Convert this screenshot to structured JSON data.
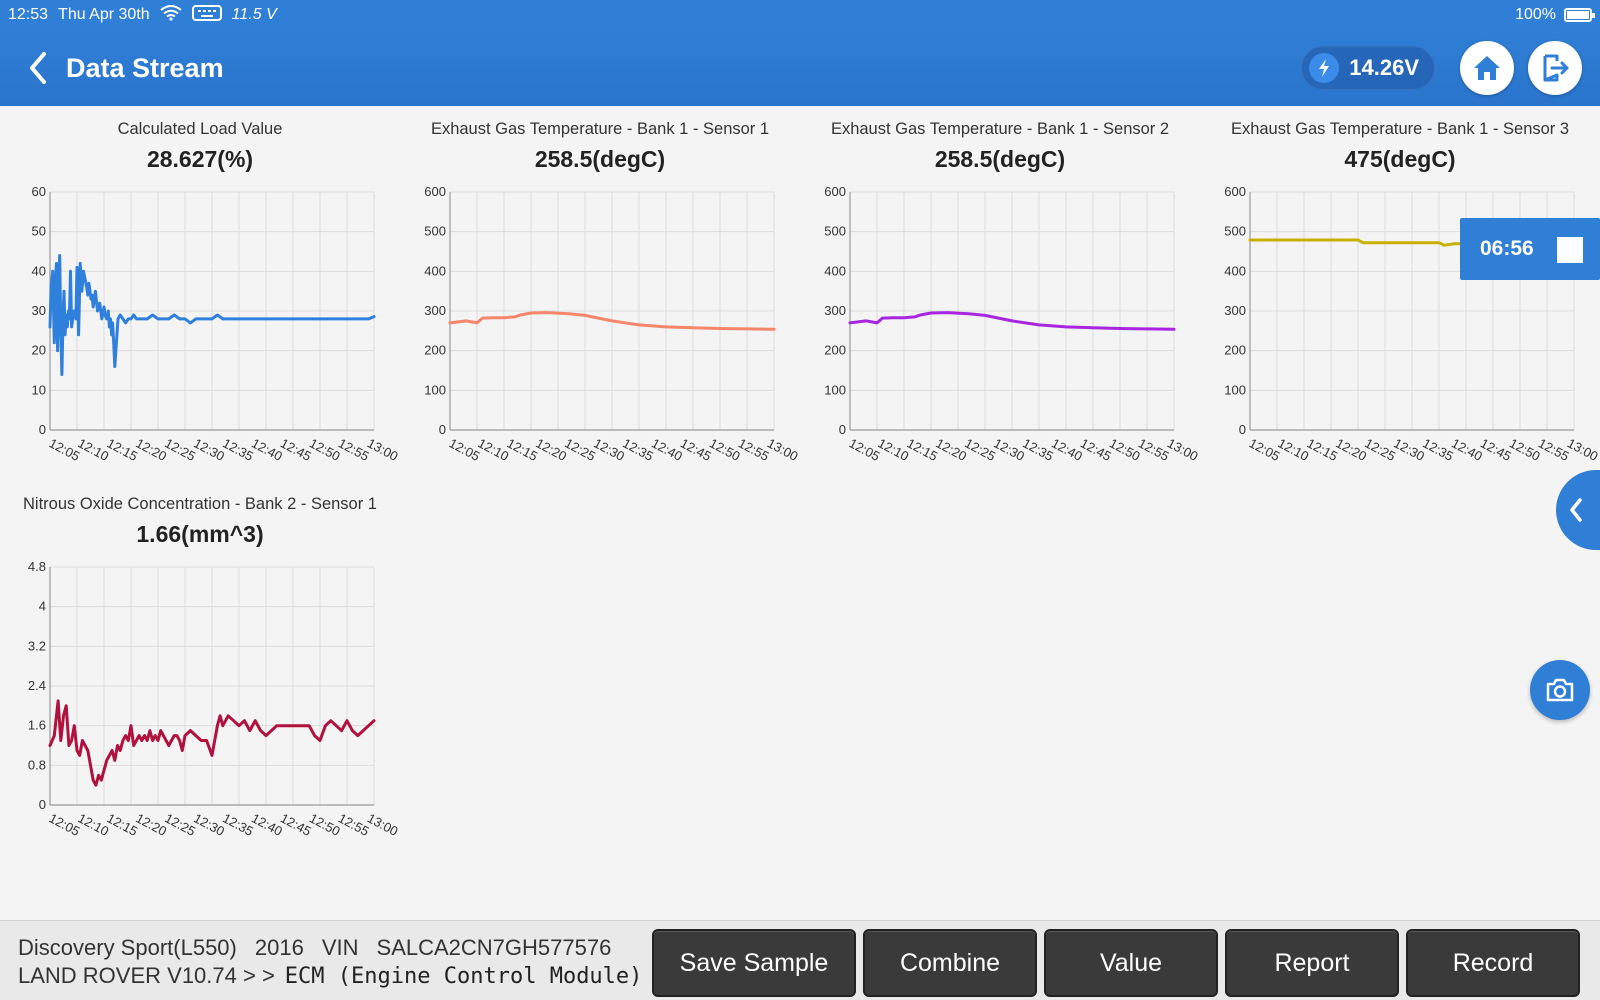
{
  "status": {
    "time": "12:53",
    "date": "Thu Apr 30th",
    "voltage_small": "11.5 V",
    "battery": "100%",
    "battery_level": 1.0
  },
  "header": {
    "title": "Data Stream",
    "voltage": "14.26V"
  },
  "timer": {
    "elapsed": "06:56"
  },
  "chart_data": [
    {
      "type": "line",
      "title": "Calculated Load Value",
      "value_label": "28.627(%)",
      "ylim": [
        0,
        60
      ],
      "yticks": [
        "0",
        "10",
        "20",
        "30",
        "40",
        "50",
        "60"
      ],
      "xticks": [
        "12:05",
        "12:10",
        "12:15",
        "12:20",
        "12:25",
        "12:30",
        "12:35",
        "12:40",
        "12:45",
        "12:50",
        "12:55",
        "13:00"
      ],
      "color": "#2f7fdc",
      "grid": true,
      "x": [
        0,
        0.2,
        0.5,
        0.8,
        1.0,
        1.2,
        1.4,
        1.6,
        1.8,
        2.0,
        2.2,
        2.4,
        2.6,
        2.8,
        3.0,
        3.2,
        3.4,
        3.6,
        3.8,
        4.0,
        4.2,
        4.4,
        4.6,
        4.8,
        5.0,
        5.3,
        5.6,
        5.9,
        6.2,
        6.5,
        6.8,
        7.0,
        7.2,
        7.4,
        7.6,
        7.8,
        8.0,
        8.4,
        8.8,
        9.2,
        9.6,
        10.0,
        10.2,
        10.5,
        10.8,
        11.0,
        11.2,
        11.4,
        11.6,
        11.8,
        12.0,
        12.3,
        12.6,
        13.0,
        13.5,
        14.0,
        14.5,
        15.0,
        15.5,
        16,
        17,
        18,
        19,
        20,
        21,
        22,
        23,
        24,
        25,
        26,
        27,
        28,
        29,
        30,
        31,
        32,
        33,
        34,
        35,
        36,
        37,
        38,
        39,
        40,
        41,
        42,
        43,
        44,
        45,
        46,
        47,
        48,
        49,
        50,
        51,
        52,
        53,
        54,
        55,
        56,
        57,
        58,
        59,
        60
      ],
      "values": [
        26,
        36,
        40,
        22,
        38,
        42,
        20,
        33,
        44,
        25,
        14,
        28,
        35,
        24,
        29,
        26,
        30,
        28,
        40,
        26,
        28,
        30,
        30,
        28,
        41,
        24,
        42,
        35,
        40,
        38,
        36,
        34,
        37,
        35,
        33,
        34,
        31,
        35,
        30,
        32,
        28,
        31,
        29,
        28,
        30,
        26,
        28,
        24,
        27,
        22,
        16,
        22,
        28,
        29,
        28,
        27,
        28,
        28,
        29,
        28,
        28,
        28,
        29,
        28,
        28,
        28,
        29,
        28,
        28,
        27,
        28,
        28,
        28,
        28,
        29,
        28,
        28,
        28,
        28,
        28,
        28,
        28,
        28,
        28,
        28,
        28,
        28,
        28,
        28,
        28,
        28,
        28,
        28,
        28,
        28,
        28,
        28,
        28,
        28,
        28,
        28,
        28,
        28,
        28.6
      ]
    },
    {
      "type": "line",
      "title": "Exhaust Gas Temperature - Bank 1 - Sensor 1",
      "value_label": "258.5(degC)",
      "ylim": [
        0,
        600
      ],
      "yticks": [
        "0",
        "100",
        "200",
        "300",
        "400",
        "500",
        "600"
      ],
      "xticks": [
        "12:05",
        "12:10",
        "12:15",
        "12:20",
        "12:25",
        "12:30",
        "12:35",
        "12:40",
        "12:45",
        "12:50",
        "12:55",
        "13:00"
      ],
      "color": "#f5866b",
      "grid": true,
      "x": [
        0,
        3,
        5,
        6,
        8,
        10,
        12,
        13,
        15,
        18,
        22,
        25,
        30,
        35,
        40,
        45,
        50,
        55,
        60
      ],
      "values": [
        270,
        275,
        270,
        282,
        283,
        283,
        285,
        290,
        295,
        296,
        293,
        289,
        275,
        265,
        260,
        258,
        256,
        255,
        254
      ]
    },
    {
      "type": "line",
      "title": "Exhaust Gas Temperature - Bank 1 - Sensor 2",
      "value_label": "258.5(degC)",
      "ylim": [
        0,
        600
      ],
      "yticks": [
        "0",
        "100",
        "200",
        "300",
        "400",
        "500",
        "600"
      ],
      "xticks": [
        "12:05",
        "12:10",
        "12:15",
        "12:20",
        "12:25",
        "12:30",
        "12:35",
        "12:40",
        "12:45",
        "12:50",
        "12:55",
        "13:00"
      ],
      "color": "#a826e0",
      "grid": true,
      "x": [
        0,
        3,
        5,
        6,
        8,
        10,
        12,
        13,
        15,
        18,
        22,
        25,
        30,
        35,
        40,
        45,
        50,
        55,
        60
      ],
      "values": [
        270,
        275,
        270,
        282,
        283,
        283,
        285,
        290,
        295,
        296,
        293,
        289,
        275,
        265,
        260,
        258,
        256,
        255,
        254
      ]
    },
    {
      "type": "line",
      "title": "Exhaust Gas Temperature - Bank 1 - Sensor 3",
      "value_label": "475(degC)",
      "ylim": [
        0,
        600
      ],
      "yticks": [
        "0",
        "100",
        "200",
        "300",
        "400",
        "500",
        "600"
      ],
      "xticks": [
        "12:05",
        "12:10",
        "12:15",
        "12:20",
        "12:25",
        "12:30",
        "12:35",
        "12:40",
        "12:45",
        "12:50",
        "12:55",
        "13:00"
      ],
      "color": "#c9b000",
      "grid": true,
      "x": [
        0,
        5,
        10,
        15,
        20,
        21,
        22,
        25,
        30,
        35,
        36,
        38,
        40,
        45,
        50,
        55,
        60
      ],
      "values": [
        479,
        479,
        479,
        479,
        479,
        472,
        472,
        472,
        472,
        472,
        466,
        470,
        469,
        470,
        470,
        470,
        470
      ]
    },
    {
      "type": "line",
      "title": "Nitrous Oxide Concentration - Bank 2 - Sensor 1",
      "value_label": "1.66(mm^3)",
      "ylim": [
        0,
        4.8
      ],
      "yticks": [
        "0",
        "0.8",
        "1.6",
        "2.4",
        "3.2",
        "4",
        "4.8"
      ],
      "xticks": [
        "12:05",
        "12:10",
        "12:15",
        "12:20",
        "12:25",
        "12:30",
        "12:35",
        "12:40",
        "12:45",
        "12:50",
        "12:55",
        "13:00"
      ],
      "color": "#b0123e",
      "grid": true,
      "x": [
        0,
        0.8,
        1.5,
        2.0,
        2.5,
        3.0,
        3.5,
        4.0,
        4.5,
        5.0,
        5.5,
        6.0,
        6.5,
        7.0,
        7.5,
        8.0,
        8.5,
        9.0,
        9.5,
        10.0,
        10.5,
        11,
        11.5,
        12,
        12.5,
        13,
        13.5,
        14,
        14.5,
        15,
        15.5,
        16,
        16.5,
        17,
        17.5,
        18,
        18.5,
        19,
        19.5,
        20,
        20.5,
        21,
        21.5,
        22,
        22.5,
        23,
        23.5,
        24,
        24.5,
        25,
        26,
        27,
        28,
        29,
        30,
        30.5,
        31,
        31.5,
        32,
        33,
        34,
        35,
        36,
        37,
        38,
        39,
        40,
        41,
        42,
        43,
        44,
        45,
        46,
        47,
        48,
        49,
        50,
        51,
        52,
        53,
        54,
        55,
        56,
        57,
        58,
        59,
        60
      ],
      "values": [
        1.2,
        1.4,
        2.1,
        1.3,
        1.8,
        2.0,
        1.2,
        1.3,
        1.6,
        1.1,
        1.0,
        1.3,
        1.2,
        1.1,
        0.8,
        0.5,
        0.4,
        0.6,
        0.5,
        0.7,
        0.9,
        1.0,
        1.1,
        0.9,
        1.2,
        1.1,
        1.3,
        1.4,
        1.3,
        1.6,
        1.2,
        1.3,
        1.4,
        1.3,
        1.4,
        1.3,
        1.5,
        1.3,
        1.4,
        1.3,
        1.5,
        1.4,
        1.3,
        1.2,
        1.3,
        1.4,
        1.4,
        1.3,
        1.1,
        1.4,
        1.5,
        1.4,
        1.3,
        1.3,
        1.0,
        1.3,
        1.6,
        1.8,
        1.6,
        1.8,
        1.7,
        1.6,
        1.7,
        1.5,
        1.7,
        1.5,
        1.4,
        1.5,
        1.6,
        1.6,
        1.6,
        1.6,
        1.6,
        1.6,
        1.6,
        1.4,
        1.3,
        1.6,
        1.7,
        1.6,
        1.5,
        1.7,
        1.5,
        1.4,
        1.5,
        1.6,
        1.7
      ]
    }
  ],
  "footer": {
    "vehicle_model": "Discovery Sport(L550)",
    "year": "2016",
    "vin_label": "VIN",
    "vin": "SALCA2CN7GH577576",
    "path": "LAND ROVER V10.74 > >",
    "module": "ECM (Engine Control Module)",
    "buttons": {
      "save_sample": "Save Sample",
      "combine": "Combine",
      "value": "Value",
      "report": "Report",
      "record": "Record"
    }
  }
}
